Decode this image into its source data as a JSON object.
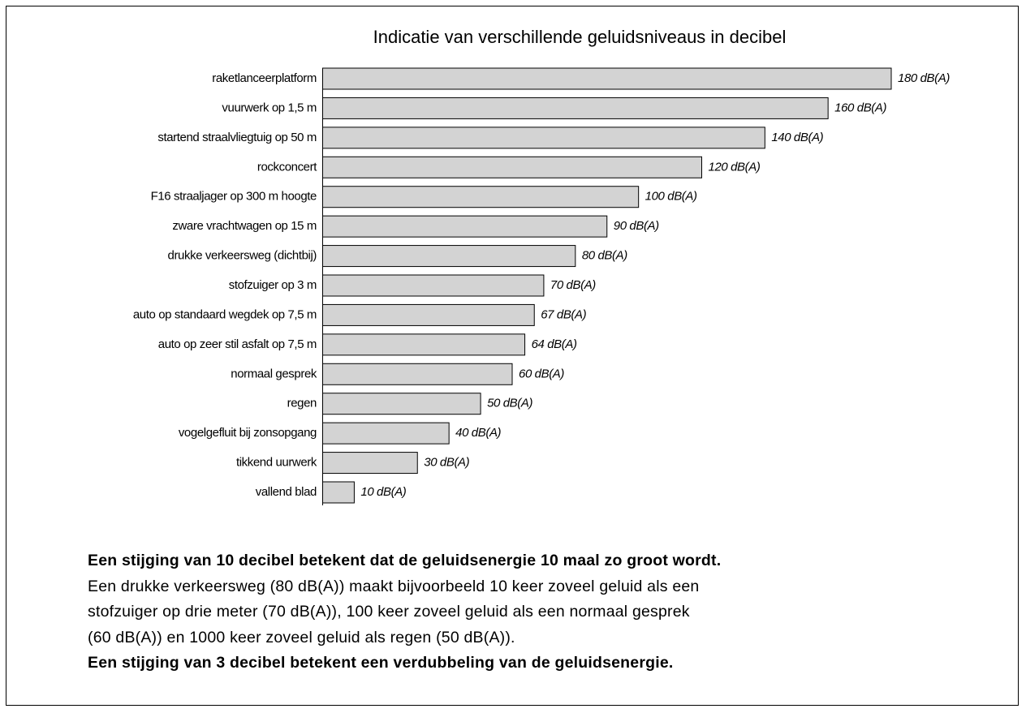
{
  "chart_data": {
    "type": "bar",
    "orientation": "horizontal",
    "title": "Indicatie van verschillende geluidsniveaus in decibel",
    "categories": [
      "raketlanceerplatform",
      "vuurwerk op 1,5 m",
      "startend straalvliegtuig op 50 m",
      "rockconcert",
      "F16 straaljager op 300 m hoogte",
      "zware vrachtwagen op 15 m",
      "drukke verkeersweg (dichtbij)",
      "stofzuiger op 3 m",
      "auto op standaard wegdek op 7,5 m",
      "auto op zeer stil asfalt op 7,5 m",
      "normaal gesprek",
      "regen",
      "vogelgefluit bij zonsopgang",
      "tikkend uurwerk",
      "vallend blad"
    ],
    "values": [
      180,
      160,
      140,
      120,
      100,
      90,
      80,
      70,
      67,
      64,
      60,
      50,
      40,
      30,
      10
    ],
    "value_labels": [
      "180 dB(A)",
      "160 dB(A)",
      "140 dB(A)",
      "120 dB(A)",
      "100 dB(A)",
      "90 dB(A)",
      "80 dB(A)",
      "70 dB(A)",
      "67 dB(A)",
      "64 dB(A)",
      "60 dB(A)",
      "50 dB(A)",
      "40 dB(A)",
      "30 dB(A)",
      "10 dB(A)"
    ],
    "color": "#d3d3d3"
  },
  "text": {
    "bold_first": "Een stijging van 10 decibel betekent dat de geluidsenergie 10 maal zo groot wordt.",
    "lines": [
      "Een drukke verkeersweg (80 dB(A)) maakt bijvoorbeeld 10 keer zoveel geluid als een",
      "stofzuiger op drie meter (70 dB(A)), 100 keer zoveel geluid als een normaal gesprek",
      "(60 dB(A)) en 1000 keer zoveel geluid als regen (50 dB(A))."
    ],
    "bold_last": "Een stijging van 3 decibel betekent een verdubbeling van de geluidsenergie."
  }
}
